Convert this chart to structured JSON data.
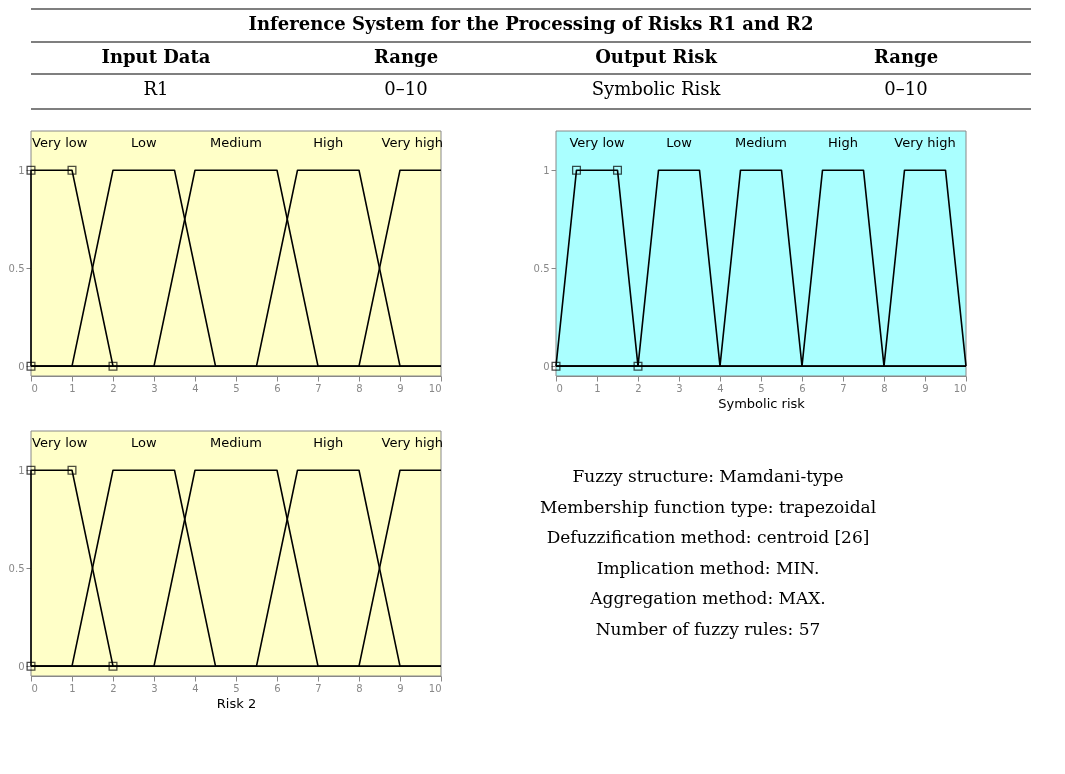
{
  "chart_data": [
    {
      "type": "other",
      "title": "Inference System for the Processing of Risks R1 and R2",
      "annotations": [
        "Input Data",
        "Range",
        "Output Risk",
        "Range",
        "R1",
        "0–10",
        "Symbolic Risk",
        "0–10"
      ]
    },
    {
      "type": "line",
      "xlim": [
        0,
        10
      ],
      "ylim": [
        -0.05,
        1.2
      ],
      "xticks": [
        0,
        1,
        2,
        3,
        4,
        5,
        6,
        7,
        8,
        9,
        10
      ],
      "yticks": [
        0,
        0.5,
        1
      ],
      "grid": false,
      "marker": "none",
      "line_style": "solid",
      "bands": [
        {
          "axis": "x",
          "from": 0,
          "to": 10,
          "color": "#ffffc8"
        }
      ],
      "series": [
        {
          "name": "Very low",
          "color": "#000000",
          "marker": "square",
          "x": [
            0,
            0,
            1,
            2
          ],
          "values": [
            0,
            1,
            1,
            0
          ]
        },
        {
          "name": "Low",
          "color": "#000000",
          "x": [
            0,
            1,
            2,
            3.5,
            4.5,
            10
          ],
          "values": [
            0,
            0,
            1,
            1,
            0,
            0
          ]
        },
        {
          "name": "Medium",
          "color": "#000000",
          "x": [
            0,
            3,
            4,
            6,
            7,
            10
          ],
          "values": [
            0,
            0,
            1,
            1,
            0,
            0
          ]
        },
        {
          "name": "High",
          "color": "#000000",
          "x": [
            0,
            5.5,
            6.5,
            8,
            9,
            10
          ],
          "values": [
            0,
            0,
            1,
            1,
            0,
            0
          ]
        },
        {
          "name": "Very high",
          "color": "#000000",
          "x": [
            0,
            8,
            9,
            10
          ],
          "values": [
            0,
            0,
            1,
            1
          ]
        }
      ]
    },
    {
      "type": "line",
      "xlabel": "Symbolic risk",
      "xlim": [
        0,
        10
      ],
      "ylim": [
        -0.05,
        1.2
      ],
      "xticks": [
        0,
        1,
        2,
        3,
        4,
        5,
        6,
        7,
        8,
        9,
        10
      ],
      "yticks": [
        0,
        0.5,
        1
      ],
      "grid": false,
      "marker": "none",
      "line_style": "solid",
      "bands": [
        {
          "axis": "x",
          "from": 0,
          "to": 10,
          "color": "#aaffff"
        }
      ],
      "series": [
        {
          "name": "Very low",
          "color": "#000000",
          "marker": "square",
          "x": [
            0,
            0.5,
            1.5,
            2
          ],
          "values": [
            0,
            1,
            1,
            0
          ]
        },
        {
          "name": "Low",
          "color": "#000000",
          "x": [
            0,
            2,
            2.5,
            3.5,
            4,
            10
          ],
          "values": [
            0,
            0,
            1,
            1,
            0,
            0
          ]
        },
        {
          "name": "Medium",
          "color": "#000000",
          "x": [
            0,
            4,
            4.5,
            5.5,
            6,
            10
          ],
          "values": [
            0,
            0,
            1,
            1,
            0,
            0
          ]
        },
        {
          "name": "High",
          "color": "#000000",
          "x": [
            0,
            6,
            6.5,
            7.5,
            8,
            10
          ],
          "values": [
            0,
            0,
            1,
            1,
            0,
            0
          ]
        },
        {
          "name": "Very high",
          "color": "#000000",
          "x": [
            0,
            8,
            8.5,
            9.5,
            10
          ],
          "values": [
            0,
            0,
            1,
            1,
            0
          ]
        }
      ]
    },
    {
      "type": "line",
      "xlabel": "Risk 2",
      "xlim": [
        0,
        10
      ],
      "ylim": [
        -0.05,
        1.2
      ],
      "xticks": [
        0,
        1,
        2,
        3,
        4,
        5,
        6,
        7,
        8,
        9,
        10
      ],
      "yticks": [
        0,
        0.5,
        1
      ],
      "grid": false,
      "marker": "none",
      "line_style": "solid",
      "bands": [
        {
          "axis": "x",
          "from": 0,
          "to": 10,
          "color": "#ffffc8"
        }
      ],
      "series": [
        {
          "name": "Very low",
          "color": "#000000",
          "marker": "square",
          "x": [
            0,
            0,
            1,
            2
          ],
          "values": [
            0,
            1,
            1,
            0
          ]
        },
        {
          "name": "Low",
          "color": "#000000",
          "x": [
            0,
            1,
            2,
            3.5,
            4.5,
            10
          ],
          "values": [
            0,
            0,
            1,
            1,
            0,
            0
          ]
        },
        {
          "name": "Medium",
          "color": "#000000",
          "x": [
            0,
            3,
            4,
            6,
            7,
            10
          ],
          "values": [
            0,
            0,
            1,
            1,
            0,
            0
          ]
        },
        {
          "name": "High",
          "color": "#000000",
          "x": [
            0,
            5.5,
            6.5,
            8,
            9,
            10
          ],
          "values": [
            0,
            0,
            1,
            1,
            0,
            0
          ]
        },
        {
          "name": "Very high",
          "color": "#000000",
          "x": [
            0,
            8,
            9,
            10
          ],
          "values": [
            0,
            0,
            1,
            1
          ]
        }
      ]
    },
    {
      "type": "other",
      "annotations": [
        "Fuzzy structure: Mamdani-type",
        "Membership function type: trapezoidal",
        "Defuzzification method: centroid [26]",
        "Implication method: MIN.",
        "Aggregation method: MAX.",
        "Number of fuzzy rules: 57"
      ]
    }
  ]
}
